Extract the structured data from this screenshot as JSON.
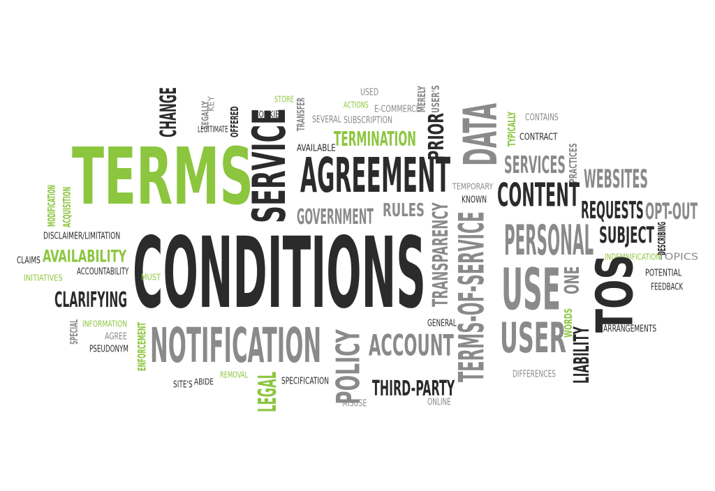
{
  "colors": {
    "black": "#2b2b2b",
    "gray": "#8a8a8a",
    "light_gray": "#a3a3a3",
    "green": "#8cc63f",
    "background": "#ffffff"
  },
  "words": [
    {
      "text": "TERMS",
      "color": "green"
    },
    {
      "text": "CONDITIONS",
      "color": "black"
    },
    {
      "text": "AGREEMENT",
      "color": "black"
    },
    {
      "text": "SERVICE",
      "color": "black"
    },
    {
      "text": "NOTIFICATION",
      "color": "gray"
    },
    {
      "text": "GOVERNMENT",
      "color": "gray"
    },
    {
      "text": "RULES",
      "color": "gray"
    },
    {
      "text": "TERMINATION",
      "color": "green"
    },
    {
      "text": "ACTIONS",
      "color": "green"
    },
    {
      "text": "STORE",
      "color": "green"
    },
    {
      "text": "AVAILABLE",
      "color": "black"
    },
    {
      "text": "COOKIES",
      "color": "black"
    },
    {
      "text": "OFFERED",
      "color": "black"
    },
    {
      "text": "LEGALLY",
      "color": "gray"
    },
    {
      "text": "KEY",
      "color": "gray"
    },
    {
      "text": "LEGITIMATE",
      "color": "black"
    },
    {
      "text": "CHANGE",
      "color": "black"
    },
    {
      "text": "TRANSFER",
      "color": "gray"
    },
    {
      "text": "SEVERAL",
      "color": "gray"
    },
    {
      "text": "USED",
      "color": "gray"
    },
    {
      "text": "E-COMMERCE",
      "color": "gray"
    },
    {
      "text": "SUBSCRIPTION",
      "color": "gray"
    },
    {
      "text": "MERELY",
      "color": "gray"
    },
    {
      "text": "USER'S",
      "color": "gray"
    },
    {
      "text": "PRIOR",
      "color": "black"
    },
    {
      "text": "DATA",
      "color": "gray"
    },
    {
      "text": "TYPICALLY",
      "color": "green"
    },
    {
      "text": "CONTAINS",
      "color": "gray"
    },
    {
      "text": "CONTRACT",
      "color": "black"
    },
    {
      "text": "SERVICES",
      "color": "gray"
    },
    {
      "text": "PRACTICES",
      "color": "gray"
    },
    {
      "text": "WEBSITES",
      "color": "gray"
    },
    {
      "text": "TEMPORARY",
      "color": "gray"
    },
    {
      "text": "KNOWN",
      "color": "black"
    },
    {
      "text": "CONTENT",
      "color": "black"
    },
    {
      "text": "REQUESTS",
      "color": "black"
    },
    {
      "text": "OPT-OUT",
      "color": "gray"
    },
    {
      "text": "SUBJECT",
      "color": "black"
    },
    {
      "text": "DESCRIBING",
      "color": "black"
    },
    {
      "text": "TOPICS",
      "color": "gray"
    },
    {
      "text": "INDEMNIFICATION",
      "color": "green"
    },
    {
      "text": "POTENTIAL",
      "color": "black"
    },
    {
      "text": "FEEDBACK",
      "color": "black"
    },
    {
      "text": "PERSONAL",
      "color": "gray"
    },
    {
      "text": "USE",
      "color": "gray"
    },
    {
      "text": "ONE",
      "color": "gray"
    },
    {
      "text": "TOS",
      "color": "black"
    },
    {
      "text": "USER",
      "color": "gray"
    },
    {
      "text": "WORDS",
      "color": "green"
    },
    {
      "text": "LIABILITY",
      "color": "black"
    },
    {
      "text": "ARRANGEMENTS",
      "color": "black"
    },
    {
      "text": "DIFFERENCES",
      "color": "gray"
    },
    {
      "text": "TRANSPARENCY",
      "color": "gray"
    },
    {
      "text": "TERMS-OF-SERVICE",
      "color": "gray"
    },
    {
      "text": "GENERAL",
      "color": "black"
    },
    {
      "text": "POLICY",
      "color": "gray"
    },
    {
      "text": "ACCOUNT",
      "color": "gray"
    },
    {
      "text": "THIRD-PARTY",
      "color": "black"
    },
    {
      "text": "MISUSE",
      "color": "gray"
    },
    {
      "text": "ONLINE",
      "color": "gray"
    },
    {
      "text": "SPECIFICATION",
      "color": "black"
    },
    {
      "text": "MODIFICATION",
      "color": "green"
    },
    {
      "text": "ACQUISITION",
      "color": "green"
    },
    {
      "text": "DISCLAIMER/LIMITATION",
      "color": "black"
    },
    {
      "text": "CLAIMS",
      "color": "black"
    },
    {
      "text": "AVAILABILITY",
      "color": "green"
    },
    {
      "text": "INITIATIVES",
      "color": "green"
    },
    {
      "text": "ACCOUNTABILITY",
      "color": "black"
    },
    {
      "text": "MUST",
      "color": "green"
    },
    {
      "text": "CLARIFYING",
      "color": "black"
    },
    {
      "text": "SPECIAL",
      "color": "gray"
    },
    {
      "text": "INFORMATION",
      "color": "green"
    },
    {
      "text": "AGREE",
      "color": "gray"
    },
    {
      "text": "PSEUDONYM",
      "color": "black"
    },
    {
      "text": "ENFORCEMENT",
      "color": "green"
    },
    {
      "text": "SITE'S",
      "color": "black"
    },
    {
      "text": "ABIDE",
      "color": "black"
    },
    {
      "text": "REMOVAL",
      "color": "green"
    },
    {
      "text": "LEGAL",
      "color": "green"
    }
  ]
}
